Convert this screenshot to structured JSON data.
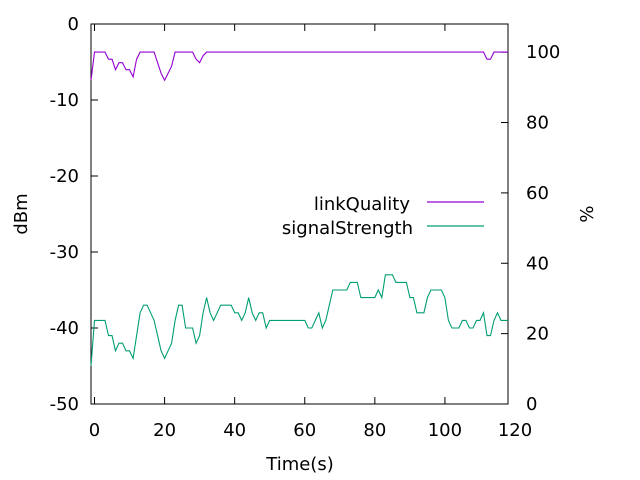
{
  "chart_data": {
    "type": "line",
    "title": "",
    "xlabel": "Time(s)",
    "ylabel": "dBm",
    "y2label": "%",
    "xlim": [
      -1,
      118
    ],
    "ylim": [
      -50,
      0
    ],
    "y2lim": [
      0,
      108
    ],
    "xticks": [
      "0",
      "20",
      "40",
      "60",
      "80",
      "100",
      "120"
    ],
    "xtick_values": [
      0,
      20,
      40,
      60,
      80,
      100,
      120
    ],
    "yticks": [
      "0",
      "-10",
      "-20",
      "-30",
      "-40",
      "-50"
    ],
    "ytick_values": [
      0,
      -10,
      -20,
      -30,
      -40,
      -50
    ],
    "y2ticks": [
      "100",
      "80",
      "60",
      "40",
      "20",
      "0"
    ],
    "y2tick_values": [
      100,
      80,
      60,
      40,
      20,
      0
    ],
    "grid": false,
    "legend_position": "right-middle",
    "series": [
      {
        "name": "linkQuality",
        "axis": "y2",
        "color": "#9400d3",
        "x": [
          -1,
          0,
          1,
          2,
          3,
          4,
          5,
          6,
          7,
          8,
          9,
          10,
          11,
          12,
          13,
          14,
          15,
          16,
          17,
          18,
          19,
          20,
          21,
          22,
          23,
          24,
          25,
          26,
          27,
          28,
          29,
          30,
          31,
          32,
          33,
          35,
          40,
          50,
          60,
          70,
          80,
          90,
          100,
          105,
          110,
          111,
          112,
          113,
          114,
          115,
          116,
          117,
          118
        ],
        "y": [
          92,
          100,
          100,
          100,
          100,
          98,
          98,
          95,
          97,
          97,
          95,
          95,
          93,
          98,
          100,
          100,
          100,
          100,
          100,
          97,
          94,
          92,
          94,
          96,
          100,
          100,
          100,
          100,
          100,
          100,
          98,
          97,
          99,
          100,
          100,
          100,
          100,
          100,
          100,
          100,
          100,
          100,
          100,
          100,
          100,
          100,
          98,
          98,
          100,
          100,
          100,
          100,
          100
        ]
      },
      {
        "name": "signalStrength",
        "axis": "y1",
        "color": "#009e73",
        "x": [
          -1,
          0,
          1,
          2,
          3,
          4,
          5,
          6,
          7,
          8,
          9,
          10,
          11,
          12,
          13,
          14,
          15,
          16,
          17,
          18,
          19,
          20,
          21,
          22,
          23,
          24,
          25,
          26,
          27,
          28,
          29,
          30,
          31,
          32,
          33,
          34,
          35,
          36,
          37,
          38,
          39,
          40,
          41,
          42,
          43,
          44,
          45,
          46,
          47,
          48,
          49,
          50,
          51,
          52,
          53,
          54,
          55,
          56,
          57,
          58,
          59,
          60,
          61,
          62,
          63,
          64,
          65,
          66,
          67,
          68,
          69,
          70,
          71,
          72,
          73,
          74,
          75,
          76,
          77,
          78,
          79,
          80,
          81,
          82,
          83,
          84,
          85,
          86,
          87,
          88,
          89,
          90,
          91,
          92,
          93,
          94,
          95,
          96,
          97,
          98,
          99,
          100,
          101,
          102,
          103,
          104,
          105,
          106,
          107,
          108,
          109,
          110,
          111,
          112,
          113,
          114,
          115,
          116,
          117,
          118
        ],
        "y": [
          -45,
          -39,
          -39,
          -39,
          -39,
          -41,
          -41,
          -43,
          -42,
          -42,
          -43,
          -43,
          -44,
          -41,
          -38,
          -37,
          -37,
          -38,
          -39,
          -41,
          -43,
          -44,
          -43,
          -42,
          -39,
          -37,
          -37,
          -40,
          -40,
          -40,
          -42,
          -41,
          -38,
          -36,
          -38,
          -39,
          -38,
          -37,
          -37,
          -37,
          -37,
          -38,
          -38,
          -39,
          -38,
          -36,
          -38,
          -39,
          -38,
          -38,
          -40,
          -39,
          -39,
          -39,
          -39,
          -39,
          -39,
          -39,
          -39,
          -39,
          -39,
          -39,
          -40,
          -40,
          -39,
          -38,
          -40,
          -39,
          -37,
          -35,
          -35,
          -35,
          -35,
          -35,
          -34,
          -34,
          -34,
          -36,
          -36,
          -36,
          -36,
          -36,
          -35,
          -36,
          -33,
          -33,
          -33,
          -34,
          -34,
          -34,
          -34,
          -36,
          -36,
          -38,
          -38,
          -38,
          -36,
          -35,
          -35,
          -35,
          -35,
          -36,
          -39,
          -40,
          -40,
          -40,
          -39,
          -39,
          -40,
          -40,
          -39,
          -39,
          -38,
          -41,
          -41,
          -39,
          -38,
          -39,
          -39,
          -39
        ]
      }
    ]
  }
}
